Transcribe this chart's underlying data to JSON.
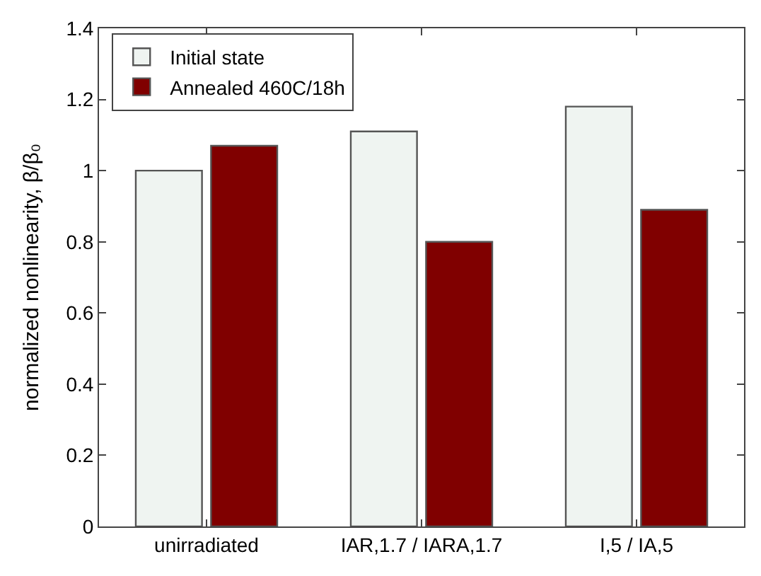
{
  "chart_data": {
    "type": "bar",
    "categories": [
      "unirradiated",
      "IAR,1.7 / IARA,1.7",
      "I,5 / IA,5"
    ],
    "series": [
      {
        "name": "Initial state",
        "color": "#eff4f1",
        "values": [
          1.0,
          1.11,
          1.18
        ]
      },
      {
        "name": "Annealed 460C/18h",
        "color": "#800000",
        "values": [
          1.07,
          0.8,
          0.89
        ]
      }
    ],
    "ylabel": "normalized nonlinearity, β/β₀",
    "ylim": [
      0,
      1.4
    ],
    "yticks": [
      0,
      0.2,
      0.4,
      0.6,
      0.8,
      1,
      1.2,
      1.4
    ],
    "legend": "top left"
  }
}
